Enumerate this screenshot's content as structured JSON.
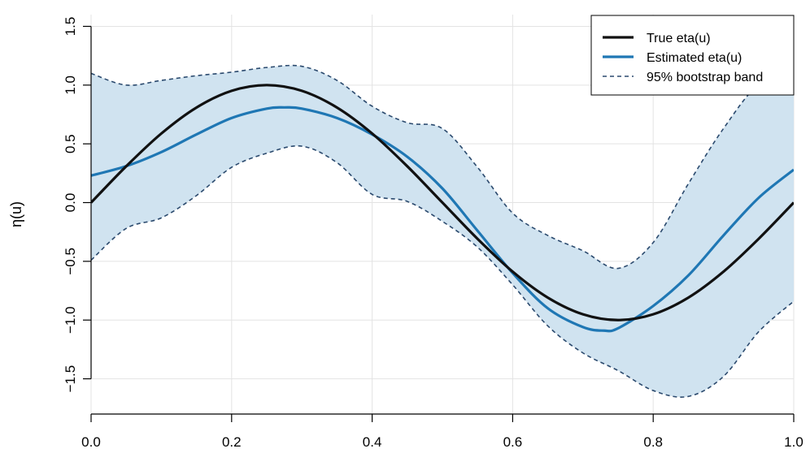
{
  "chart_data": {
    "type": "line",
    "title": "",
    "xlabel": "",
    "ylabel": "η(u)",
    "xlim": [
      0,
      1
    ],
    "ylim": [
      -1.8,
      1.6
    ],
    "xticks": [
      0.0,
      0.2,
      0.4,
      0.6,
      0.8,
      1.0
    ],
    "xtick_labels": [
      "0.0",
      "0.2",
      "0.4",
      "0.6",
      "0.8",
      "1.0"
    ],
    "yticks": [
      -1.5,
      -1.0,
      -0.5,
      0.0,
      0.5,
      1.0,
      1.5
    ],
    "ytick_labels": [
      "−1.5",
      "−1.0",
      "−0.5",
      "0.0",
      "0.5",
      "1.0",
      "1.5"
    ],
    "grid": true,
    "legend_position": "top-right",
    "series": [
      {
        "name": "True eta(u)",
        "style": "solid",
        "color": "#111111",
        "x": [
          0,
          0.05,
          0.1,
          0.15,
          0.2,
          0.25,
          0.3,
          0.35,
          0.4,
          0.45,
          0.5,
          0.55,
          0.6,
          0.65,
          0.7,
          0.75,
          0.8,
          0.85,
          0.9,
          0.95,
          1.0
        ],
        "y": [
          0,
          0.309,
          0.588,
          0.809,
          0.951,
          1.0,
          0.951,
          0.809,
          0.588,
          0.309,
          0,
          -0.309,
          -0.588,
          -0.809,
          -0.951,
          -1.0,
          -0.951,
          -0.809,
          -0.588,
          -0.309,
          0
        ]
      },
      {
        "name": "Estimated eta(u)",
        "style": "solid",
        "color": "#1f77b4",
        "x": [
          0,
          0.05,
          0.1,
          0.15,
          0.2,
          0.25,
          0.275,
          0.3,
          0.35,
          0.4,
          0.45,
          0.5,
          0.55,
          0.6,
          0.65,
          0.7,
          0.73,
          0.75,
          0.8,
          0.85,
          0.9,
          0.95,
          1.0
        ],
        "y": [
          0.23,
          0.31,
          0.43,
          0.58,
          0.72,
          0.8,
          0.81,
          0.8,
          0.72,
          0.58,
          0.39,
          0.12,
          -0.24,
          -0.6,
          -0.9,
          -1.06,
          -1.09,
          -1.07,
          -0.88,
          -0.62,
          -0.28,
          0.04,
          0.28
        ]
      }
    ],
    "band": {
      "name": "95% bootstrap band",
      "style": "dashed",
      "line_color": "#2b4a6e",
      "fill_color": "#d0e3f0",
      "x": [
        0,
        0.05,
        0.1,
        0.15,
        0.2,
        0.25,
        0.3,
        0.35,
        0.4,
        0.45,
        0.5,
        0.55,
        0.6,
        0.65,
        0.7,
        0.75,
        0.8,
        0.85,
        0.9,
        0.95,
        1.0
      ],
      "upper": [
        1.1,
        1.0,
        1.04,
        1.08,
        1.11,
        1.15,
        1.16,
        1.04,
        0.82,
        0.68,
        0.63,
        0.3,
        -0.09,
        -0.28,
        -0.41,
        -0.56,
        -0.34,
        0.16,
        0.63,
        1.0,
        1.06
      ],
      "lower": [
        -0.49,
        -0.22,
        -0.13,
        0.06,
        0.3,
        0.42,
        0.48,
        0.34,
        0.07,
        0.01,
        -0.16,
        -0.38,
        -0.7,
        -1.05,
        -1.28,
        -1.43,
        -1.6,
        -1.65,
        -1.48,
        -1.1,
        -0.84
      ]
    }
  }
}
